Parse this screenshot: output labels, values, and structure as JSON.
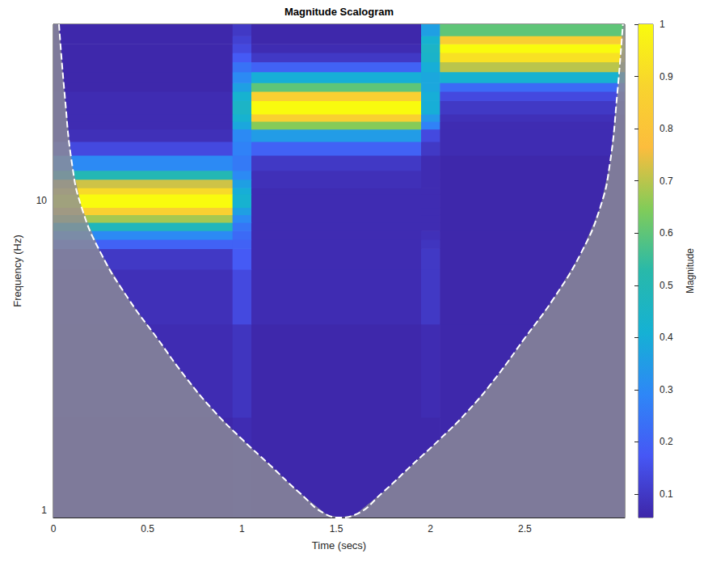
{
  "chart_data": {
    "type": "heatmap",
    "title": "Magnitude Scalogram",
    "x_label": "Time (secs)",
    "y_label": "Frequency (Hz)",
    "log": "y",
    "grid": false,
    "xlim": [
      0,
      3.03
    ],
    "xticks": [
      0,
      0.5,
      1,
      1.5,
      2,
      2.5
    ],
    "ylim": [
      0.95,
      37
    ],
    "yticks": [
      1,
      10
    ],
    "cells": {
      "times": [
        0,
        0.95,
        1.05,
        1.95,
        2.05,
        3.03
      ],
      "frequencies": [
        0.95,
        2,
        4,
        6,
        7,
        7.5,
        8,
        8.5,
        9,
        9.5,
        10.5,
        11,
        11.7,
        12.5,
        14,
        15.5,
        17,
        18,
        19,
        21,
        22.5,
        24,
        26,
        28,
        30,
        32,
        34,
        37
      ],
      "magnitude": [
        [
          0.06,
          0.07,
          0.06,
          0.06,
          0.06
        ],
        [
          0.07,
          0.09,
          0.06,
          0.07,
          0.06
        ],
        [
          0.08,
          0.14,
          0.07,
          0.1,
          0.06
        ],
        [
          0.1,
          0.18,
          0.07,
          0.1,
          0.06
        ],
        [
          0.2,
          0.2,
          0.07,
          0.09,
          0.06
        ],
        [
          0.3,
          0.22,
          0.07,
          0.08,
          0.06
        ],
        [
          0.48,
          0.25,
          0.07,
          0.07,
          0.06
        ],
        [
          0.68,
          0.3,
          0.07,
          0.07,
          0.06
        ],
        [
          0.86,
          0.36,
          0.07,
          0.07,
          0.06
        ],
        [
          1.0,
          0.42,
          0.07,
          0.07,
          0.06
        ],
        [
          0.9,
          0.4,
          0.07,
          0.07,
          0.06
        ],
        [
          0.72,
          0.36,
          0.08,
          0.07,
          0.06
        ],
        [
          0.5,
          0.3,
          0.08,
          0.07,
          0.06
        ],
        [
          0.3,
          0.26,
          0.1,
          0.07,
          0.06
        ],
        [
          0.14,
          0.28,
          0.2,
          0.1,
          0.07
        ],
        [
          0.08,
          0.3,
          0.35,
          0.14,
          0.07
        ],
        [
          0.07,
          0.38,
          0.65,
          0.28,
          0.07
        ],
        [
          0.07,
          0.42,
          0.86,
          0.34,
          0.08
        ],
        [
          0.07,
          0.45,
          1.0,
          0.4,
          0.1
        ],
        [
          0.07,
          0.42,
          0.86,
          0.4,
          0.14
        ],
        [
          0.06,
          0.36,
          0.6,
          0.38,
          0.22
        ],
        [
          0.06,
          0.3,
          0.4,
          0.38,
          0.42
        ],
        [
          0.06,
          0.24,
          0.2,
          0.4,
          0.7
        ],
        [
          0.06,
          0.18,
          0.1,
          0.44,
          0.92
        ],
        [
          0.06,
          0.14,
          0.07,
          0.45,
          1.0
        ],
        [
          0.06,
          0.12,
          0.06,
          0.42,
          0.85
        ],
        [
          0.06,
          0.1,
          0.06,
          0.36,
          0.6
        ]
      ]
    },
    "colorbar": {
      "label": "Magnitude",
      "range": [
        0.055,
        1
      ],
      "ticks": [
        0.1,
        0.2,
        0.3,
        0.4,
        0.5,
        0.6,
        0.7,
        0.8,
        0.9,
        1
      ]
    },
    "cone_of_influence": {
      "time": [
        0.03,
        0.06,
        0.1,
        0.15,
        0.25,
        0.4,
        0.55,
        0.7,
        0.85,
        1.0,
        1.15,
        1.3,
        1.45,
        1.52,
        1.6,
        1.75,
        1.9,
        2.05,
        2.2,
        2.35,
        2.5,
        2.65,
        2.8,
        2.9,
        2.95,
        2.99,
        3.02
      ],
      "frequency": [
        37,
        22,
        13,
        9.5,
        6.8,
        4.8,
        3.6,
        2.7,
        2.1,
        1.7,
        1.4,
        1.15,
        0.97,
        0.95,
        0.97,
        1.15,
        1.4,
        1.7,
        2.1,
        2.7,
        3.6,
        4.8,
        6.8,
        9.5,
        13,
        22,
        37
      ]
    }
  }
}
